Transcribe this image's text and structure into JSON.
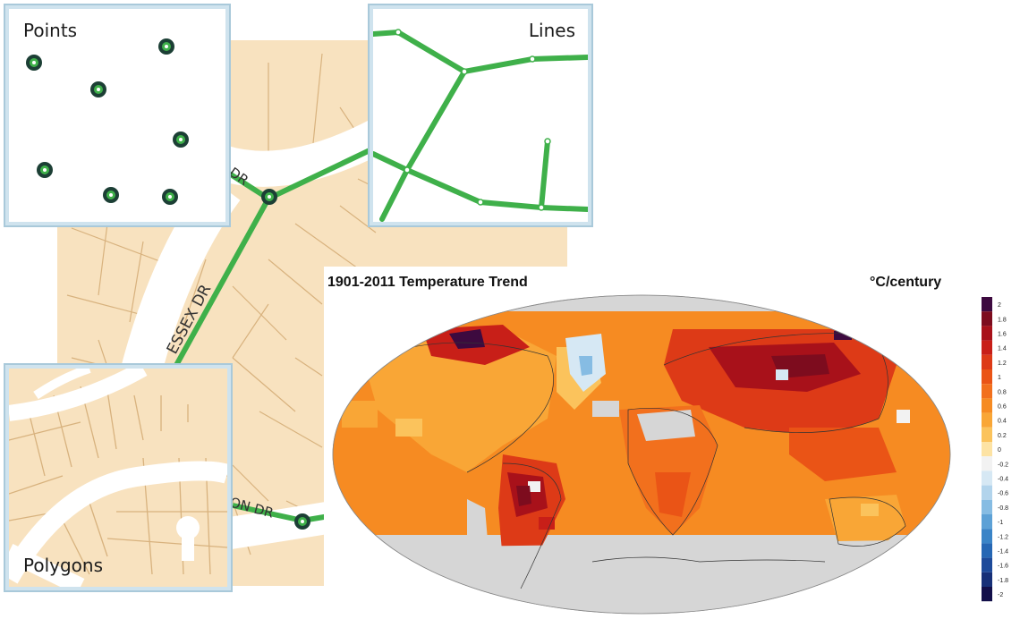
{
  "vector_panels": {
    "points_label": "Points",
    "lines_label": "Lines",
    "polygons_label": "Polygons"
  },
  "street_labels": [
    "DR",
    "ESSEX DR",
    "ON DR"
  ],
  "colors": {
    "parcel_fill": "#f8e2bf",
    "parcel_line": "#d8b27e",
    "road": "#f4f4f4",
    "line_feature": "#3fb04a",
    "point_feature": "#1c3f35",
    "panel_border": "#a9c9da",
    "no_data": "#c9c9c9",
    "ocean": "#d6d6d6"
  },
  "map": {
    "title": "1901-2011 Temperature Trend",
    "unit": "°C/century",
    "legend_ticks": [
      "2",
      "1.8",
      "1.6",
      "1.4",
      "1.2",
      "1",
      "0.8",
      "0.6",
      "0.4",
      "0.2",
      "0",
      "-0.2",
      "-0.4",
      "-0.6",
      "-0.8",
      "-1",
      "-1.2",
      "-1.4",
      "-1.6",
      "-1.8",
      "-2"
    ],
    "legend_colors": [
      "#3d0a3f",
      "#7d0c1e",
      "#a8111a",
      "#c81f18",
      "#dd3a17",
      "#ea5416",
      "#f2701d",
      "#f68b22",
      "#f9a636",
      "#fbc35c",
      "#fde3a4",
      "#f2f2f2",
      "#d6e8f4",
      "#b2d4ec",
      "#86bce3",
      "#5da1d6",
      "#3a84c7",
      "#2667b4",
      "#1d4a9a",
      "#173078",
      "#120f4a"
    ]
  }
}
